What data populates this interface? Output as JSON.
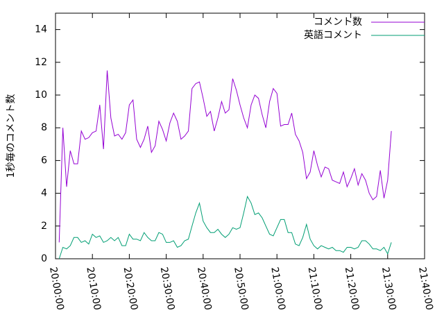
{
  "chart_data": {
    "type": "line",
    "ylabel": "1秒毎のコメント数",
    "x": [
      "20:01:00",
      "20:02:00",
      "20:03:00",
      "20:04:00",
      "20:05:00",
      "20:06:00",
      "20:07:00",
      "20:08:00",
      "20:09:00",
      "20:10:00",
      "20:11:00",
      "20:12:00",
      "20:13:00",
      "20:14:00",
      "20:15:00",
      "20:16:00",
      "20:17:00",
      "20:18:00",
      "20:19:00",
      "20:20:00",
      "20:21:00",
      "20:22:00",
      "20:23:00",
      "20:24:00",
      "20:25:00",
      "20:26:00",
      "20:27:00",
      "20:28:00",
      "20:29:00",
      "20:30:00",
      "20:31:00",
      "20:32:00",
      "20:33:00",
      "20:34:00",
      "20:35:00",
      "20:36:00",
      "20:37:00",
      "20:38:00",
      "20:39:00",
      "20:40:00",
      "20:41:00",
      "20:42:00",
      "20:43:00",
      "20:44:00",
      "20:45:00",
      "20:46:00",
      "20:47:00",
      "20:48:00",
      "20:49:00",
      "20:50:00",
      "20:51:00",
      "20:52:00",
      "20:53:00",
      "20:54:00",
      "20:55:00",
      "20:56:00",
      "20:57:00",
      "20:58:00",
      "20:59:00",
      "21:00:00",
      "21:01:00",
      "21:02:00",
      "21:03:00",
      "21:04:00",
      "21:05:00",
      "21:06:00",
      "21:07:00",
      "21:08:00",
      "21:09:00",
      "21:10:00",
      "21:11:00",
      "21:12:00",
      "21:13:00",
      "21:14:00",
      "21:15:00",
      "21:16:00",
      "21:17:00",
      "21:18:00",
      "21:19:00",
      "21:20:00",
      "21:21:00",
      "21:22:00",
      "21:23:00",
      "21:24:00",
      "21:25:00",
      "21:26:00",
      "21:27:00",
      "21:28:00",
      "21:29:00",
      "21:30:00",
      "21:31:00"
    ],
    "series": [
      {
        "name": "コメント数",
        "color": "#9400d3",
        "values": [
          1.0,
          8.0,
          4.4,
          6.6,
          5.8,
          5.8,
          7.8,
          7.3,
          7.4,
          7.7,
          7.8,
          9.4,
          6.7,
          11.5,
          8.6,
          7.5,
          7.6,
          7.3,
          7.7,
          9.4,
          9.7,
          7.3,
          6.8,
          7.3,
          8.1,
          6.5,
          6.9,
          8.4,
          7.9,
          7.2,
          8.3,
          8.9,
          8.4,
          7.3,
          7.5,
          7.8,
          10.4,
          10.7,
          10.8,
          9.8,
          8.7,
          9.0,
          7.8,
          8.6,
          9.6,
          8.9,
          9.1,
          11.0,
          10.3,
          9.4,
          8.6,
          8.0,
          9.4,
          10.0,
          9.8,
          8.8,
          8.0,
          9.6,
          10.4,
          10.1,
          8.1,
          8.2,
          8.2,
          8.9,
          7.6,
          7.2,
          6.5,
          4.9,
          5.3,
          6.6,
          5.7,
          5.0,
          5.6,
          5.5,
          4.8,
          4.7,
          4.6,
          5.3,
          4.4,
          4.9,
          5.5,
          4.5,
          5.2,
          4.8,
          4.0,
          3.6,
          3.8,
          5.4,
          3.7,
          4.8,
          7.8
        ]
      },
      {
        "name": "英語コメント",
        "color": "#009e73",
        "values": [
          0.0,
          0.7,
          0.6,
          0.8,
          1.3,
          1.3,
          1.0,
          1.1,
          0.9,
          1.5,
          1.3,
          1.4,
          1.0,
          1.1,
          1.3,
          1.1,
          1.3,
          0.8,
          0.8,
          1.5,
          1.2,
          1.2,
          1.1,
          1.6,
          1.3,
          1.1,
          1.1,
          1.6,
          1.5,
          1.0,
          1.0,
          1.1,
          0.7,
          0.8,
          1.1,
          1.2,
          2.0,
          2.8,
          3.4,
          2.3,
          1.9,
          1.6,
          1.6,
          1.8,
          1.5,
          1.3,
          1.5,
          1.9,
          1.8,
          1.9,
          2.8,
          3.8,
          3.4,
          2.7,
          2.8,
          2.5,
          2.0,
          1.5,
          1.4,
          1.9,
          2.4,
          2.4,
          1.6,
          1.6,
          0.9,
          0.8,
          1.3,
          2.1,
          1.2,
          0.8,
          0.6,
          0.8,
          0.7,
          0.6,
          0.7,
          0.5,
          0.5,
          0.4,
          0.7,
          0.7,
          0.6,
          0.7,
          1.1,
          1.1,
          0.9,
          0.6,
          0.6,
          0.5,
          0.7,
          0.3,
          1.0
        ]
      }
    ],
    "xlim": [
      "20:00:00",
      "21:40:00"
    ],
    "xticks": [
      "20:00:00",
      "20:10:00",
      "20:20:00",
      "20:30:00",
      "20:40:00",
      "20:50:00",
      "21:00:00",
      "21:10:00",
      "21:20:00",
      "21:30:00",
      "21:40:00"
    ],
    "ylim": [
      0,
      15
    ],
    "yticks": [
      0,
      2,
      4,
      6,
      8,
      10,
      12,
      14
    ],
    "legend": "top-right"
  }
}
